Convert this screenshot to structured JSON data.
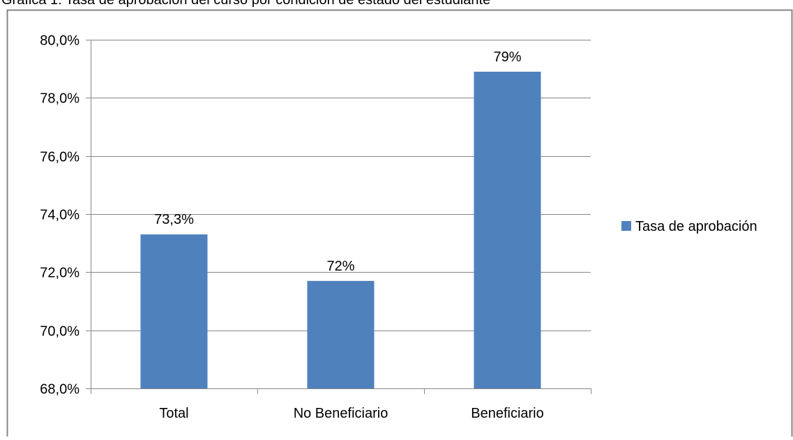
{
  "chart_data": {
    "type": "bar",
    "title": "Gráfica 1: Tasa de aprobación del curso por condición de estado del estudiante",
    "categories": [
      "Total",
      "No Beneficiario",
      "Beneficiario"
    ],
    "series": [
      {
        "name": "Tasa de aprobación",
        "values": [
          73.3,
          71.7,
          78.9
        ],
        "data_labels": [
          "73,3%",
          "72%",
          "79%"
        ]
      }
    ],
    "ylim": [
      68,
      80
    ],
    "yticks": [
      68,
      70,
      72,
      74,
      76,
      78,
      80
    ],
    "ytick_labels": [
      "68,0%",
      "70,0%",
      "72,0%",
      "74,0%",
      "76,0%",
      "78,0%",
      "80,0%"
    ],
    "grid": true,
    "legend_position": "right",
    "colors": {
      "bar": "#4f81bd",
      "grid": "#868686",
      "axis": "#868686",
      "frame": "#868686"
    }
  }
}
